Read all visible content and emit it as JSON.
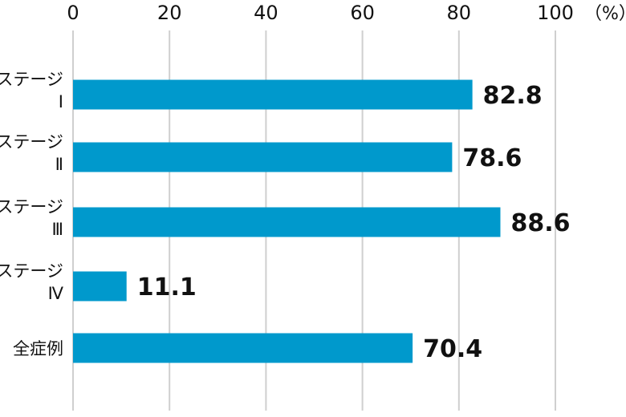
{
  "chart_data": {
    "type": "bar",
    "orientation": "horizontal",
    "title": "",
    "xlabel": "",
    "ylabel": "",
    "unit": "（%）",
    "xlim": [
      0,
      100
    ],
    "ticks": [
      0,
      20,
      40,
      60,
      80,
      100
    ],
    "grid": true,
    "bar_color": "#0099cc",
    "categories": [
      [
        "ステージ",
        "Ⅰ"
      ],
      [
        "ステージ",
        "Ⅱ"
      ],
      [
        "ステージ",
        "Ⅲ"
      ],
      [
        "ステージ",
        "Ⅳ"
      ],
      [
        "全症例"
      ]
    ],
    "values": [
      82.8,
      78.6,
      88.6,
      11.1,
      70.4
    ],
    "value_labels": [
      "82.8",
      "78.6",
      "88.6",
      "11.1",
      "70.4"
    ]
  }
}
